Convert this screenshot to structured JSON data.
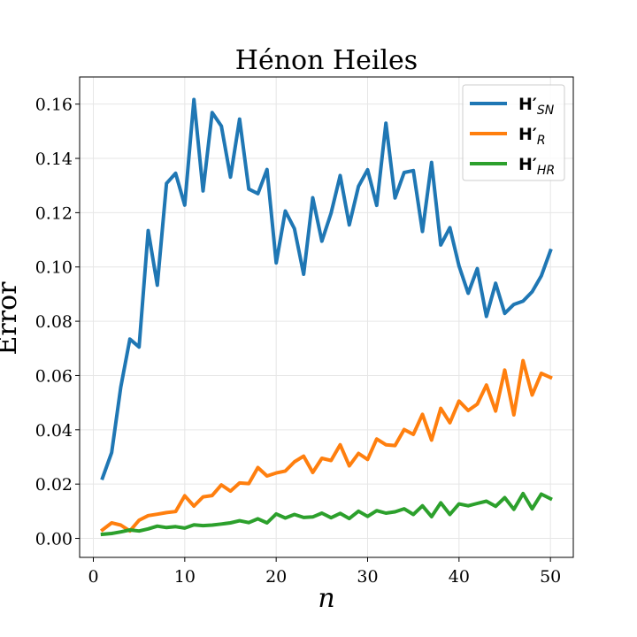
{
  "chart_data": {
    "type": "line",
    "title": "Hénon Heiles",
    "xlabel": "n",
    "ylabel": "Error",
    "xlim": [
      -1.5,
      52.5
    ],
    "ylim": [
      -0.007,
      0.17
    ],
    "xticks": [
      0,
      10,
      20,
      30,
      40,
      50
    ],
    "xtick_labels": [
      "0",
      "10",
      "20",
      "30",
      "40",
      "50"
    ],
    "yticks": [
      0.0,
      0.02,
      0.04,
      0.06,
      0.08,
      0.1,
      0.12,
      0.14,
      0.16
    ],
    "ytick_labels": [
      "0.00",
      "0.02",
      "0.04",
      "0.06",
      "0.08",
      "0.10",
      "0.12",
      "0.14",
      "0.16"
    ],
    "grid": true,
    "legend_position": "top-right",
    "x": [
      1,
      2,
      3,
      4,
      5,
      6,
      7,
      8,
      9,
      10,
      11,
      12,
      13,
      14,
      15,
      16,
      17,
      18,
      19,
      20,
      21,
      22,
      23,
      24,
      25,
      26,
      27,
      28,
      29,
      30,
      31,
      32,
      33,
      34,
      35,
      36,
      37,
      38,
      39,
      40,
      41,
      42,
      43,
      44,
      45,
      46,
      47,
      48,
      49,
      50
    ],
    "series": [
      {
        "name": "H′SN",
        "legend_main": "H′",
        "legend_sub": "SN",
        "color": "#1f77b4",
        "values": [
          0.0222,
          0.0316,
          0.0557,
          0.0734,
          0.0705,
          0.1134,
          0.0933,
          0.1308,
          0.1345,
          0.1228,
          0.1617,
          0.128,
          0.1569,
          0.1519,
          0.1331,
          0.1545,
          0.1287,
          0.127,
          0.1359,
          0.1015,
          0.1206,
          0.1141,
          0.0973,
          0.1255,
          0.1095,
          0.1198,
          0.1337,
          0.1155,
          0.1297,
          0.1358,
          0.1227,
          0.153,
          0.1254,
          0.1348,
          0.1355,
          0.1131,
          0.1385,
          0.1081,
          0.1145,
          0.1004,
          0.0903,
          0.0994,
          0.0818,
          0.094,
          0.0829,
          0.0862,
          0.0874,
          0.0909,
          0.0967,
          0.106
        ]
      },
      {
        "name": "H′R",
        "legend_main": "H′",
        "legend_sub": "R",
        "color": "#ff7f0e",
        "values": [
          0.0031,
          0.0057,
          0.0049,
          0.0027,
          0.0067,
          0.0084,
          0.0089,
          0.0095,
          0.0099,
          0.0157,
          0.0119,
          0.0153,
          0.0158,
          0.0197,
          0.0174,
          0.0204,
          0.0202,
          0.0261,
          0.023,
          0.0241,
          0.0248,
          0.0282,
          0.0303,
          0.0243,
          0.0295,
          0.0287,
          0.0345,
          0.0267,
          0.0313,
          0.0291,
          0.0366,
          0.0345,
          0.0342,
          0.0401,
          0.0383,
          0.0457,
          0.0362,
          0.0479,
          0.0426,
          0.0506,
          0.0471,
          0.0495,
          0.0565,
          0.0469,
          0.062,
          0.0455,
          0.0655,
          0.0528,
          0.0608,
          0.0593
        ]
      },
      {
        "name": "H′HR",
        "legend_main": "H′",
        "legend_sub": "HR",
        "color": "#2ca02c",
        "values": [
          0.0015,
          0.0018,
          0.0024,
          0.0031,
          0.0027,
          0.0035,
          0.0045,
          0.004,
          0.0043,
          0.0038,
          0.005,
          0.0047,
          0.0049,
          0.0053,
          0.0057,
          0.0065,
          0.0058,
          0.0072,
          0.0057,
          0.009,
          0.0075,
          0.0088,
          0.0077,
          0.0079,
          0.0093,
          0.0076,
          0.0092,
          0.0073,
          0.01,
          0.0081,
          0.0102,
          0.0093,
          0.0098,
          0.0109,
          0.0088,
          0.012,
          0.008,
          0.0131,
          0.0088,
          0.0127,
          0.012,
          0.0129,
          0.0137,
          0.0118,
          0.015,
          0.0107,
          0.0165,
          0.0109,
          0.0163,
          0.0146
        ]
      }
    ]
  }
}
